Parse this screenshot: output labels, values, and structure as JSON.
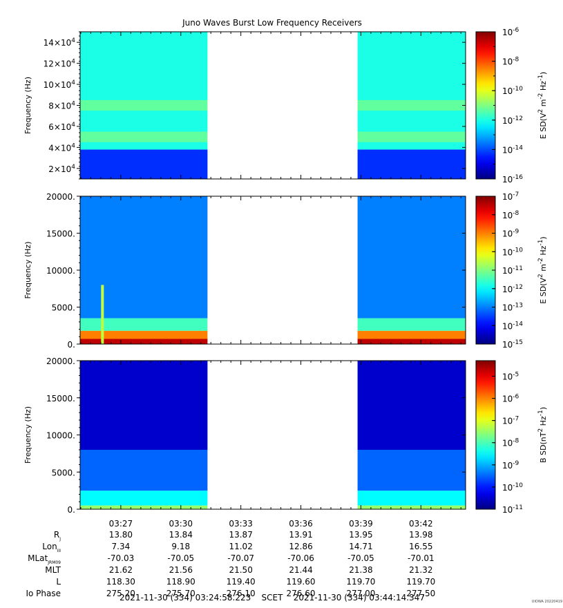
{
  "title": "Juno Waves Burst Low Frequency Receivers",
  "footer": {
    "time_range": "2021-11-30 (334) 03:24:58.223    SCET    2021-11-30 (334) 03:44:14.347",
    "credit": "UIOWA 20220419"
  },
  "chart_data": [
    {
      "type": "heatmap",
      "ylabel": "Frequency (Hz)",
      "ytick_labels": [
        "2×10^4",
        "4×10^4",
        "6×10^4",
        "8×10^4",
        "10×10^4",
        "12×10^4",
        "14×10^4"
      ],
      "ytick_values": [
        20000,
        40000,
        60000,
        80000,
        100000,
        120000,
        140000
      ],
      "ylim": [
        10000,
        150000
      ],
      "colorbar": {
        "label": "E SD(V^2 m^-2 Hz^-1)",
        "tick_exponents": [
          -6,
          -8,
          -10,
          -12,
          -14,
          -16
        ],
        "range_exponents": [
          -16,
          -6
        ]
      },
      "data_gap": [
        "03:31:20",
        "03:38:50"
      ],
      "features": [
        {
          "band_hz": [
            10000,
            38000
          ],
          "level_exponent": -14.3
        },
        {
          "band_hz": [
            38000,
            150000
          ],
          "level_exponent": -12.0
        },
        {
          "band_hz": [
            45000,
            55000
          ],
          "level_exponent": -11.3
        },
        {
          "band_hz": [
            75000,
            85000
          ],
          "level_exponent": -11.3
        }
      ]
    },
    {
      "type": "heatmap",
      "ylabel": "Frequency (Hz)",
      "ytick_labels": [
        "0.",
        "5000.",
        "10000.",
        "15000.",
        "20000."
      ],
      "ytick_values": [
        0,
        5000,
        10000,
        15000,
        20000
      ],
      "ylim": [
        0,
        20000
      ],
      "colorbar": {
        "label": "E SD(V^2 m^-2 Hz^-1)",
        "tick_exponents": [
          -7,
          -8,
          -9,
          -10,
          -11,
          -12,
          -13,
          -14,
          -15
        ],
        "range_exponents": [
          -15,
          -7
        ]
      },
      "data_gap": [
        "03:31:20",
        "03:38:50"
      ],
      "features": [
        {
          "band_hz": [
            0,
            700
          ],
          "level_exponent": -7.5
        },
        {
          "band_hz": [
            700,
            1800
          ],
          "level_exponent": -9.0
        },
        {
          "band_hz": [
            1800,
            3500
          ],
          "level_exponent": -11.5
        },
        {
          "band_hz": [
            3500,
            20000
          ],
          "level_exponent": -13.0
        },
        {
          "time": "03:26:05",
          "band_hz": [
            0,
            8000
          ],
          "level_exponent": -10.5
        }
      ]
    },
    {
      "type": "heatmap",
      "ylabel": "Frequency (Hz)",
      "ytick_labels": [
        "0.",
        "5000.",
        "10000.",
        "15000.",
        "20000."
      ],
      "ytick_values": [
        0,
        5000,
        10000,
        15000,
        20000
      ],
      "ylim": [
        0,
        20000
      ],
      "colorbar": {
        "label": "B SD(nT^2 Hz^-1)",
        "tick_exponents": [
          -5,
          -6,
          -7,
          -8,
          -9,
          -10,
          -11
        ],
        "range_exponents": [
          -11,
          -4.3
        ]
      },
      "data_gap": [
        "03:31:20",
        "03:38:50"
      ],
      "features": [
        {
          "band_hz": [
            0,
            500
          ],
          "level_exponent": -7.5
        },
        {
          "band_hz": [
            500,
            2500
          ],
          "level_exponent": -8.5
        },
        {
          "band_hz": [
            2500,
            8000
          ],
          "level_exponent": -9.5
        },
        {
          "band_hz": [
            8000,
            20000
          ],
          "level_exponent": -10.5
        }
      ]
    }
  ],
  "x_axis": {
    "range": [
      "03:24:58",
      "03:44:14"
    ],
    "tick_labels": [
      "03:27",
      "03:30",
      "03:33",
      "03:36",
      "03:39",
      "03:42"
    ]
  },
  "ephemeris": {
    "rows": [
      {
        "label": "R",
        "sub": "J",
        "values": [
          "13.80",
          "13.84",
          "13.87",
          "13.91",
          "13.95",
          "13.98"
        ]
      },
      {
        "label": "Lon",
        "sub": "III",
        "values": [
          "7.34",
          "9.18",
          "11.02",
          "12.86",
          "14.71",
          "16.55"
        ]
      },
      {
        "label": "MLat",
        "sub": "JRM09",
        "values": [
          "-70.03",
          "-70.05",
          "-70.07",
          "-70.06",
          "-70.05",
          "-70.01"
        ]
      },
      {
        "label": "MLT",
        "sub": "",
        "values": [
          "21.62",
          "21.56",
          "21.50",
          "21.44",
          "21.38",
          "21.32"
        ]
      },
      {
        "label": "L",
        "sub": "",
        "values": [
          "118.30",
          "118.90",
          "119.40",
          "119.60",
          "119.70",
          "119.70"
        ]
      },
      {
        "label": "Io Phase",
        "sub": "",
        "values": [
          "275.20",
          "275.70",
          "276.10",
          "276.60",
          "277.00",
          "277.50"
        ]
      }
    ]
  }
}
